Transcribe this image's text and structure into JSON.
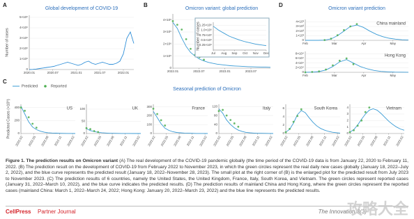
{
  "chart_data": [
    {
      "type": "line",
      "letter": "A",
      "title": "Global development of COVID-19",
      "ylabel": "Number of cases",
      "ylim": [
        0,
        5200000
      ],
      "yticks": [
        0,
        {
          "value": 1000000,
          "label": "1×10⁶"
        },
        {
          "value": 2000000,
          "label": "2×10⁶"
        },
        {
          "value": 3000000,
          "label": "3×10⁶"
        },
        {
          "value": 4000000,
          "label": "4×10⁶"
        },
        {
          "value": 5000000,
          "label": "5×10⁶"
        }
      ],
      "xticks": [
        "2020.01",
        "2020.07",
        "2021.01",
        "2021.07",
        "2022.01"
      ],
      "series": [
        {
          "color": "#2f8fd8",
          "style": "line",
          "values": [
            0,
            10000,
            50000,
            100000,
            150000,
            200000,
            250000,
            300000,
            400000,
            500000,
            600000,
            700000,
            600000,
            500000,
            400000,
            500000,
            700000,
            800000,
            600000,
            500000,
            600000,
            700000,
            600000,
            500000,
            500000,
            600000,
            800000,
            1500000,
            3000000,
            3600000,
            2500000
          ]
        }
      ]
    },
    {
      "type": "line",
      "letter": "B",
      "title": "Omicron variant: global prediction",
      "ylim": [
        0,
        4500000
      ],
      "yticks": [
        0,
        {
          "value": 1000000,
          "label": "1×10⁶"
        },
        {
          "value": 2000000,
          "label": "2×10⁶"
        },
        {
          "value": 3000000,
          "label": "3×10⁶"
        },
        {
          "value": 4000000,
          "label": "4×10⁶"
        }
      ],
      "xticks": [
        "2022.01",
        "2022.07",
        "2023.01",
        "2023.07"
      ],
      "series": [
        {
          "color": "#3a9bd5",
          "style": "line",
          "values": [
            3800000,
            3300000,
            2500000,
            1800000,
            1300000,
            1000000,
            750000,
            600000,
            480000,
            400000,
            330000,
            280000,
            240000,
            200000,
            180000,
            160000,
            140000,
            120000,
            110000,
            100000,
            90000,
            80000,
            70000
          ]
        },
        {
          "color": "#4caf50",
          "style": "points",
          "values": [
            3900000,
            3600000,
            3200000,
            2400000,
            1600000,
            1100000,
            900000,
            700000,
            null,
            null,
            null,
            null,
            null,
            null,
            null,
            null,
            null,
            null,
            null,
            null,
            null,
            null,
            null
          ]
        }
      ]
    },
    {
      "type": "line",
      "ylabel": "Number of cases",
      "ylim": [
        0,
        1400000
      ],
      "yticks": [
        {
          "value": 250000,
          "label": "0.25×10⁶"
        },
        {
          "value": 500000,
          "label": "0.5×10⁶"
        },
        {
          "value": 750000,
          "label": "0.75×10⁶"
        },
        {
          "value": 1000000,
          "label": "1.0×10⁶"
        },
        {
          "value": 1250000,
          "label": "1.25×10⁶"
        }
      ],
      "xticks": [
        "Jul",
        "Aug",
        "Sep",
        "Oct",
        "Nov",
        "Dec"
      ],
      "series": [
        {
          "color": "#3a9bd5",
          "style": "line",
          "values": [
            1200000,
            1000000,
            850000,
            700000,
            600000,
            500000,
            420000,
            360000,
            300000,
            260000,
            220000
          ]
        }
      ]
    },
    {
      "type": "line",
      "letter": "D",
      "title": "Omicron variant prediction",
      "label": "China mainland",
      "ylim": [
        0,
        4500
      ],
      "yticks": [
        0,
        {
          "value": 1000,
          "label": "1×10³"
        },
        {
          "value": 2000,
          "label": "2×10³"
        },
        {
          "value": 3000,
          "label": "3×10³"
        },
        {
          "value": 4000,
          "label": "4×10³"
        }
      ],
      "xticks": [
        "Feb",
        "Mar",
        "Apr",
        "May"
      ],
      "series": [
        {
          "color": "#3a9bd5",
          "style": "line",
          "values": [
            0,
            0,
            0,
            50,
            300,
            1000,
            2000,
            3000,
            3300,
            2800,
            2000,
            1300,
            800,
            450,
            250,
            120,
            60
          ]
        },
        {
          "color": "#4caf50",
          "style": "points",
          "values": [
            null,
            null,
            null,
            60,
            350,
            1100,
            2200,
            3000,
            3500,
            null,
            null,
            null,
            null,
            null,
            null,
            null,
            null
          ]
        }
      ]
    },
    {
      "type": "line",
      "label": "Hong Kong",
      "ylim": [
        0,
        90000
      ],
      "yticks": [
        0,
        {
          "value": 20000,
          "label": "2×10⁴"
        },
        {
          "value": 40000,
          "label": "4×10⁴"
        },
        {
          "value": 60000,
          "label": "6×10⁴"
        },
        {
          "value": 80000,
          "label": "8×10⁴"
        }
      ],
      "xticks": [
        "Feb",
        "Mar",
        "Apr",
        "May"
      ],
      "series": [
        {
          "color": "#3a9bd5",
          "style": "line",
          "values": [
            0,
            1000,
            3000,
            10000,
            25000,
            45000,
            55000,
            40000,
            25000,
            15000,
            8000,
            4000,
            2000,
            1000,
            500,
            200
          ]
        },
        {
          "color": "#4caf50",
          "style": "points",
          "values": [
            0,
            1500,
            4000,
            12000,
            30000,
            50000,
            60000,
            35000,
            null,
            null,
            null,
            null,
            null,
            null,
            null,
            null
          ]
        }
      ]
    },
    {
      "type": "line",
      "letter": "C",
      "title": "Seasonal prediction of Omicron",
      "ylabel": "Predicted Cases (×10⁵)",
      "label": "US",
      "ylim": [
        0,
        450
      ],
      "yticks": [
        0,
        200,
        400
      ],
      "xticks": [
        "2022.02",
        "2022.05",
        "2022.08",
        "2022.11",
        "2023.02"
      ],
      "series": [
        {
          "name": "Predicted",
          "color": "#3a9bd5",
          "style": "line",
          "values": [
            420,
            300,
            180,
            100,
            60,
            35,
            20,
            12,
            8,
            5,
            3,
            2,
            1,
            1,
            0
          ]
        },
        {
          "name": "Reported",
          "color": "#4caf50",
          "style": "points",
          "values": [
            400,
            350,
            250,
            150,
            90,
            null,
            null,
            null,
            null,
            null,
            null,
            null,
            null,
            null,
            null
          ]
        }
      ]
    },
    {
      "type": "line",
      "label": "UK",
      "ylim": [
        0,
        120
      ],
      "yticks": [
        0,
        50,
        100
      ],
      "xticks": [
        "2022.02",
        "2022.05",
        "2022.08",
        "2022.11",
        "2023.02"
      ],
      "series": [
        {
          "color": "#3a9bd5",
          "style": "line",
          "values": [
            20,
            12,
            8,
            5,
            3,
            2,
            1,
            1,
            0.5,
            0.4,
            0.3,
            0.2,
            0.1,
            0.1,
            0
          ]
        },
        {
          "color": "#4caf50",
          "style": "points",
          "values": [
            22,
            18,
            10,
            6,
            null,
            null,
            null,
            null,
            null,
            null,
            null,
            null,
            null,
            null,
            null
          ]
        }
      ]
    },
    {
      "type": "line",
      "label": "France",
      "ylim": [
        0,
        330
      ],
      "yticks": [
        0,
        100,
        200,
        300
      ],
      "xticks": [
        "2022.02",
        "2022.05",
        "2022.08",
        "2022.11",
        "2023.02"
      ],
      "series": [
        {
          "color": "#3a9bd5",
          "style": "line",
          "values": [
            250,
            180,
            110,
            60,
            35,
            20,
            12,
            8,
            5,
            3,
            2,
            1,
            1,
            0.5,
            0
          ]
        },
        {
          "color": "#4caf50",
          "style": "points",
          "values": [
            280,
            220,
            150,
            90,
            null,
            null,
            null,
            null,
            null,
            null,
            null,
            null,
            null,
            null,
            null
          ]
        }
      ]
    },
    {
      "type": "line",
      "label": "Italy",
      "ylim": [
        0,
        130
      ],
      "yticks": [
        0,
        40,
        80,
        120
      ],
      "xticks": [
        "2022.02",
        "2022.05",
        "2022.08",
        "2022.11",
        "2023.02"
      ],
      "series": [
        {
          "color": "#3a9bd5",
          "style": "line",
          "values": [
            110,
            90,
            60,
            40,
            25,
            15,
            9,
            5,
            3,
            2,
            1,
            1,
            0.5,
            0.3,
            0
          ]
        },
        {
          "color": "#4caf50",
          "style": "points",
          "values": [
            100,
            105,
            80,
            60,
            45,
            30,
            null,
            null,
            null,
            null,
            null,
            null,
            null,
            null,
            null
          ]
        }
      ]
    },
    {
      "type": "line",
      "label": "South Korea",
      "ylim": [
        0,
        7
      ],
      "yticks": [
        0,
        2,
        4,
        6
      ],
      "xticks": [
        "2022.02",
        "2022.05",
        "2022.08",
        "2022.11",
        "2023.02"
      ],
      "series": [
        {
          "color": "#3a9bd5",
          "style": "line",
          "values": [
            0.3,
            1,
            2.5,
            4.5,
            5.5,
            5,
            3.8,
            2.7,
            1.8,
            1.2,
            0.8,
            0.5,
            0.3,
            0.2,
            0.1
          ]
        },
        {
          "color": "#4caf50",
          "style": "points",
          "values": [
            0.3,
            1.1,
            2.8,
            4.2,
            5.8,
            null,
            null,
            null,
            null,
            null,
            null,
            null,
            null,
            null,
            null
          ]
        }
      ]
    },
    {
      "type": "line",
      "label": "Vietnam",
      "ylim": [
        0,
        4.5
      ],
      "yticks": [
        0,
        1,
        2,
        3,
        4
      ],
      "xticks": [
        "2022.02",
        "2022.05",
        "2022.08",
        "2022.11",
        "2023.02"
      ],
      "series": [
        {
          "color": "#3a9bd5",
          "style": "line",
          "values": [
            0.2,
            0.6,
            1.3,
            2.2,
            3.0,
            3.6,
            3.8,
            3.6,
            3.1,
            2.5,
            1.9,
            1.4,
            1.0,
            0.7,
            0.5
          ]
        },
        {
          "color": "#4caf50",
          "style": "points",
          "values": [
            0.2,
            0.5,
            1.2,
            2.0,
            3.3,
            4.0,
            null,
            null,
            null,
            null,
            null,
            null,
            null,
            null,
            null
          ]
        }
      ]
    }
  ],
  "caption": {
    "heading": "Figure 1. The prediction results on Omicron variant",
    "text": "(A) The real development of the COVID-19 pandemic globally (the time period of the COVID-19 data is from January 22, 2020 to February 11, 2022. (B) The prediction result on the development of COVID-19 from February 2022 to November 2023, in which the green circles represent the real daily new cases globally (January 18, 2022–July 2, 2022), and the blue curve represents the predicted result (January 18, 2022–November 28, 2023). The small plot at the right corner of (B) is the enlarged plot for the predicted result from July 2023 to November 2023. (C) The prediction results of 6 countries, namely the United States, the United Kingdom, France, Italy, South Korea, and Vietnam. The green circles represent reported cases (January 31, 2022–March 10, 2022), and the blue curve indicates the predicted results. (D) The prediction results of mainland China and Hong Kong, where the green circles represent the reported cases (mainland China: March 1, 2022–March 24, 2022; Hong Kong: January 20, 2022–March 23, 2022) and the blue line represents the predicted results."
  },
  "footer": {
    "brand": "CellPress",
    "partner": "Partner Journal",
    "journal": "The Innovation 3(3)",
    "watermark": "攻略大全"
  }
}
